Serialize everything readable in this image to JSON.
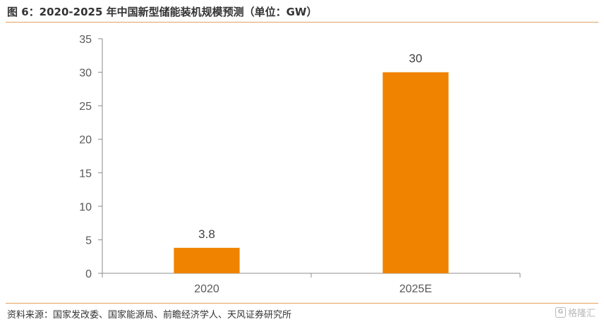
{
  "title": "图 6：2020-2025 年中国新型储能装机规模预测（单位：GW）",
  "source": "资料来源：国家发改委、国家能源局、前瞻经济学人、天风证券研究所",
  "watermark": {
    "icon": "G",
    "text": "格隆汇"
  },
  "colors": {
    "bar": "#f08300",
    "rule": "#e3a15a",
    "axis": "#8c8c8c"
  },
  "chart_data": {
    "type": "bar",
    "categories": [
      "2020",
      "2025E"
    ],
    "values": [
      3.8,
      30
    ],
    "data_labels": [
      "3.8",
      "30"
    ],
    "title": "",
    "xlabel": "",
    "ylabel": "",
    "ylim": [
      0,
      35
    ],
    "yticks": [
      0,
      5,
      10,
      15,
      20,
      25,
      30,
      35
    ],
    "grid": false,
    "legend": "none"
  }
}
